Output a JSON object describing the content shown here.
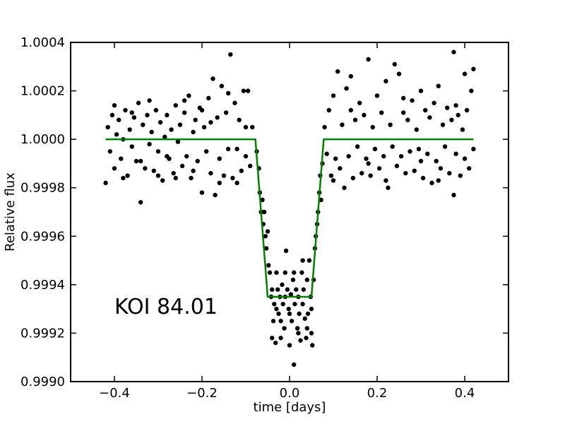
{
  "chart_data": {
    "type": "scatter",
    "xlabel": "time [days]",
    "ylabel": "Relative flux",
    "annotation": "KOI 84.01",
    "xlim": [
      -0.5,
      0.5
    ],
    "ylim": [
      0.999,
      1.0004
    ],
    "x_ticks": [
      -0.4,
      -0.2,
      0.0,
      0.2,
      0.4
    ],
    "x_tick_labels": [
      "−0.4",
      "−0.2",
      "0.0",
      "0.2",
      "0.4"
    ],
    "y_ticks": [
      0.999,
      0.9992,
      0.9994,
      0.9996,
      0.9998,
      1.0,
      1.0002,
      1.0004
    ],
    "y_tick_labels": [
      "0.9990",
      "0.9992",
      "0.9994",
      "0.9996",
      "0.9998",
      "1.0000",
      "1.0002",
      "1.0004"
    ],
    "grid": false,
    "colors": {
      "points": "#000000",
      "model": "#007f00",
      "axes": "#000000",
      "background": "#ffffff"
    },
    "series": [
      {
        "kind": "model-line",
        "x": [
          -0.42,
          -0.078,
          -0.05,
          0.05,
          0.078,
          0.42
        ],
        "y": [
          1.0,
          1.0,
          0.99935,
          0.99935,
          1.0,
          1.0
        ]
      },
      {
        "kind": "scatter",
        "points": [
          [
            -0.42,
            0.99982
          ],
          [
            -0.415,
            1.00005
          ],
          [
            -0.41,
            0.99995
          ],
          [
            -0.405,
            1.0001
          ],
          [
            -0.4,
            0.99988
          ],
          [
            -0.395,
            1.00002
          ],
          [
            -0.39,
            1.00008
          ],
          [
            -0.385,
            0.99992
          ],
          [
            -0.38,
            1.0
          ],
          [
            -0.375,
            1.00012
          ],
          [
            -0.37,
            0.99985
          ],
          [
            -0.365,
            1.00004
          ],
          [
            -0.36,
            0.99997
          ],
          [
            -0.355,
            1.00009
          ],
          [
            -0.35,
            0.99991
          ],
          [
            -0.345,
            1.00015
          ],
          [
            -0.34,
            0.99974
          ],
          [
            -0.335,
            1.00006
          ],
          [
            -0.33,
            0.99988
          ],
          [
            -0.325,
            1.0001
          ],
          [
            -0.32,
            0.99998
          ],
          [
            -0.315,
            1.00003
          ],
          [
            -0.31,
            0.99987
          ],
          [
            -0.305,
            1.00012
          ],
          [
            -0.3,
            0.99995
          ],
          [
            -0.295,
            1.00007
          ],
          [
            -0.29,
            0.99983
          ],
          [
            -0.285,
            1.00001
          ],
          [
            -0.28,
            1.0001
          ],
          [
            -0.275,
            0.99992
          ],
          [
            -0.27,
            1.00004
          ],
          [
            -0.265,
            0.99986
          ],
          [
            -0.26,
            1.00014
          ],
          [
            -0.255,
            0.99999
          ],
          [
            -0.25,
            1.00006
          ],
          [
            -0.245,
            0.99989
          ],
          [
            -0.24,
            1.00011
          ],
          [
            -0.235,
            0.99993
          ],
          [
            -0.23,
            1.00018
          ],
          [
            -0.225,
            0.99984
          ],
          [
            -0.22,
            1.00003
          ],
          [
            -0.215,
            1.00008
          ],
          [
            -0.21,
            0.99991
          ],
          [
            -0.205,
            1.00013
          ],
          [
            -0.2,
            0.99978
          ],
          [
            -0.195,
            1.00005
          ],
          [
            -0.19,
            0.99995
          ],
          [
            -0.185,
            1.00017
          ],
          [
            -0.18,
            0.99986
          ],
          [
            -0.175,
            1.00025
          ],
          [
            -0.17,
            0.99977
          ],
          [
            -0.165,
            1.00009
          ],
          [
            -0.16,
            0.99992
          ],
          [
            -0.155,
            1.00022
          ],
          [
            -0.15,
            0.99985
          ],
          [
            -0.145,
            1.00011
          ],
          [
            -0.14,
            0.99996
          ],
          [
            -0.135,
            1.00035
          ],
          [
            -0.13,
            0.99984
          ],
          [
            -0.125,
            1.00015
          ],
          [
            -0.12,
            0.99996
          ],
          [
            -0.115,
            1.00008
          ],
          [
            -0.11,
            0.99987
          ],
          [
            -0.105,
            1.0002
          ],
          [
            -0.1,
            0.99993
          ],
          [
            -0.095,
            1.0002
          ],
          [
            -0.09,
            0.99989
          ],
          [
            -0.085,
            1.00005
          ],
          [
            -0.4,
            1.00014
          ],
          [
            -0.38,
            0.99984
          ],
          [
            -0.36,
            1.00011
          ],
          [
            -0.34,
            0.99991
          ],
          [
            -0.32,
            1.00016
          ],
          [
            -0.3,
            0.99985
          ],
          [
            -0.28,
            0.99993
          ],
          [
            -0.26,
            0.99984
          ],
          [
            -0.24,
            1.00016
          ],
          [
            -0.22,
            0.99987
          ],
          [
            -0.2,
            1.00012
          ],
          [
            -0.18,
            1.00007
          ],
          [
            -0.16,
            0.99982
          ],
          [
            -0.14,
            1.00019
          ],
          [
            -0.12,
            0.99982
          ],
          [
            -0.1,
            1.00005
          ],
          [
            -0.075,
            0.99995
          ],
          [
            -0.07,
            0.99988
          ],
          [
            -0.068,
            0.99978
          ],
          [
            -0.065,
            0.9997
          ],
          [
            -0.062,
            0.99975
          ],
          [
            -0.06,
            0.99965
          ],
          [
            -0.058,
            0.9997
          ],
          [
            -0.055,
            0.9996
          ],
          [
            -0.053,
            0.99955
          ],
          [
            -0.05,
            0.99962
          ],
          [
            -0.048,
            0.99948
          ],
          [
            -0.045,
            0.99945
          ],
          [
            -0.042,
            0.99935
          ],
          [
            -0.04,
            0.99938
          ],
          [
            -0.037,
            0.99925
          ],
          [
            -0.035,
            0.99932
          ],
          [
            -0.032,
            0.99916
          ],
          [
            -0.03,
            0.9993
          ],
          [
            -0.027,
            0.99938
          ],
          [
            -0.025,
            0.99928
          ],
          [
            -0.022,
            0.99935
          ],
          [
            -0.02,
            0.99925
          ],
          [
            -0.017,
            0.9994
          ],
          [
            -0.015,
            0.99932
          ],
          [
            -0.012,
            0.99922
          ],
          [
            -0.01,
            0.99935
          ],
          [
            -0.008,
            0.99954
          ],
          [
            -0.005,
            0.99938
          ],
          [
            -0.002,
            0.9993
          ],
          [
            0.0,
            0.99928
          ],
          [
            0.003,
            0.99936
          ],
          [
            0.005,
            0.99925
          ],
          [
            0.008,
            0.99942
          ],
          [
            0.01,
            0.99907
          ],
          [
            0.012,
            0.99932
          ],
          [
            0.015,
            0.99938
          ],
          [
            0.018,
            0.99922
          ],
          [
            0.02,
            0.99935
          ],
          [
            0.022,
            0.99928
          ],
          [
            0.025,
            0.99917
          ],
          [
            0.028,
            0.99945
          ],
          [
            0.03,
            0.99932
          ],
          [
            0.032,
            0.99938
          ],
          [
            0.035,
            0.99926
          ],
          [
            0.038,
            0.99918
          ],
          [
            0.04,
            0.99942
          ],
          [
            0.042,
            0.99928
          ],
          [
            0.045,
            0.9995
          ],
          [
            0.048,
            0.99935
          ],
          [
            0.05,
            0.9992
          ],
          [
            0.052,
            0.99915
          ],
          [
            0.055,
            0.99942
          ],
          [
            0.058,
            0.99955
          ],
          [
            0.06,
            0.9996
          ],
          [
            0.063,
            0.99965
          ],
          [
            0.065,
            0.9997
          ],
          [
            0.068,
            0.99978
          ],
          [
            0.07,
            0.99985
          ],
          [
            0.072,
            0.99975
          ],
          [
            0.075,
            0.9999
          ],
          [
            -0.04,
            0.99918
          ],
          [
            -0.03,
            0.99945
          ],
          [
            -0.02,
            0.99918
          ],
          [
            -0.01,
            0.99945
          ],
          [
            0.0,
            0.99915
          ],
          [
            0.01,
            0.99945
          ],
          [
            0.02,
            0.9992
          ],
          [
            0.03,
            0.9995
          ],
          [
            0.04,
            0.99922
          ],
          [
            0.05,
            0.9993
          ],
          [
            0.08,
            1.00005
          ],
          [
            0.085,
            0.99994
          ],
          [
            0.09,
            1.00012
          ],
          [
            0.095,
            0.99985
          ],
          [
            0.1,
            1.00018
          ],
          [
            0.105,
            0.99992
          ],
          [
            0.11,
            1.00028
          ],
          [
            0.115,
            0.99988
          ],
          [
            0.12,
            1.00006
          ],
          [
            0.125,
            0.9998
          ],
          [
            0.13,
            1.00021
          ],
          [
            0.135,
            0.99993
          ],
          [
            0.14,
            1.00026
          ],
          [
            0.145,
            0.99984
          ],
          [
            0.15,
            1.00008
          ],
          [
            0.155,
            0.99997
          ],
          [
            0.16,
            1.00015
          ],
          [
            0.165,
            0.99986
          ],
          [
            0.17,
            1.0001
          ],
          [
            0.175,
            0.99992
          ],
          [
            0.18,
            1.00033
          ],
          [
            0.185,
            0.99985
          ],
          [
            0.19,
            1.00005
          ],
          [
            0.195,
            0.99996
          ],
          [
            0.2,
            1.00018
          ],
          [
            0.205,
            0.99988
          ],
          [
            0.21,
            1.00011
          ],
          [
            0.215,
            0.99993
          ],
          [
            0.22,
            1.00024
          ],
          [
            0.225,
            0.9998
          ],
          [
            0.23,
            1.00006
          ],
          [
            0.235,
            0.99997
          ],
          [
            0.24,
            1.00031
          ],
          [
            0.245,
            0.99989
          ],
          [
            0.25,
            1.00027
          ],
          [
            0.255,
            0.99993
          ],
          [
            0.26,
            1.00011
          ],
          [
            0.265,
            0.99986
          ],
          [
            0.27,
            1.00008
          ],
          [
            0.275,
            0.99995
          ],
          [
            0.28,
            1.00016
          ],
          [
            0.285,
            0.99987
          ],
          [
            0.29,
            1.00004
          ],
          [
            0.295,
            0.99996
          ],
          [
            0.3,
            1.0002
          ],
          [
            0.305,
            0.99984
          ],
          [
            0.31,
            1.00012
          ],
          [
            0.315,
            0.99994
          ],
          [
            0.32,
            1.00009
          ],
          [
            0.325,
            0.99982
          ],
          [
            0.33,
            1.00015
          ],
          [
            0.335,
            0.99991
          ],
          [
            0.34,
            1.00022
          ],
          [
            0.345,
            0.99988
          ],
          [
            0.35,
            1.00006
          ],
          [
            0.355,
            0.99997
          ],
          [
            0.36,
            1.00013
          ],
          [
            0.365,
            0.99986
          ],
          [
            0.37,
            1.00008
          ],
          [
            0.375,
            0.99977
          ],
          [
            0.375,
            1.00036
          ],
          [
            0.38,
            0.99994
          ],
          [
            0.385,
            1.0001
          ],
          [
            0.39,
            0.99985
          ],
          [
            0.395,
            1.00004
          ],
          [
            0.4,
            0.99992
          ],
          [
            0.405,
            1.00012
          ],
          [
            0.41,
            0.99988
          ],
          [
            0.415,
            1.0002
          ],
          [
            0.42,
            0.99996
          ],
          [
            0.1,
            0.99983
          ],
          [
            0.14,
            1.00012
          ],
          [
            0.18,
            0.9999
          ],
          [
            0.22,
            0.99983
          ],
          [
            0.26,
            1.00017
          ],
          [
            0.3,
            0.99991
          ],
          [
            0.34,
            0.99983
          ],
          [
            0.38,
            1.00014
          ],
          [
            0.42,
            1.00029
          ],
          [
            0.4,
            1.00027
          ]
        ]
      }
    ]
  }
}
